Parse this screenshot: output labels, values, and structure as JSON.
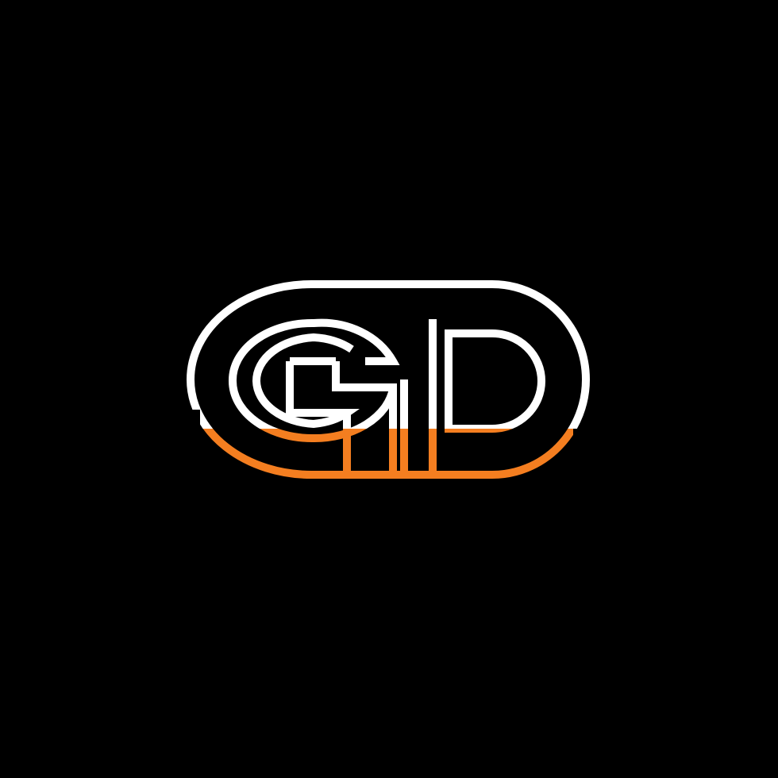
{
  "logo": {
    "monogram": "GD",
    "colors": {
      "background": "#000000",
      "upper_stroke": "#FFFFFF",
      "lower_stroke": "#F47E20"
    }
  }
}
